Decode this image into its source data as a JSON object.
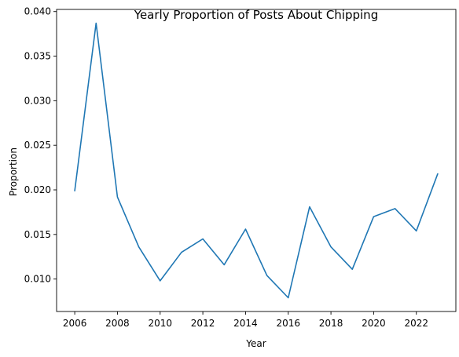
{
  "chart_data": {
    "type": "line",
    "title": "Yearly Proportion of Posts About Chipping",
    "xlabel": "Year",
    "ylabel": "Proportion",
    "x": [
      2006,
      2007,
      2008,
      2009,
      2010,
      2011,
      2012,
      2013,
      2014,
      2015,
      2016,
      2017,
      2018,
      2019,
      2020,
      2021,
      2022,
      2023
    ],
    "series": [
      {
        "values": [
          0.0199,
          0.0387,
          0.0192,
          0.0136,
          0.0098,
          0.013,
          0.0145,
          0.0116,
          0.0156,
          0.0104,
          0.0079,
          0.0181,
          0.0136,
          0.0111,
          0.017,
          0.0179,
          0.0154,
          0.0218
        ],
        "color": "#1f77b4"
      }
    ],
    "xticks": [
      2006,
      2008,
      2010,
      2012,
      2014,
      2016,
      2018,
      2020,
      2022
    ],
    "xtick_labels": [
      "2006",
      "2008",
      "2010",
      "2012",
      "2014",
      "2016",
      "2018",
      "2020",
      "2022"
    ],
    "yticks": [
      0.01,
      0.015,
      0.02,
      0.025,
      0.03,
      0.035,
      0.04
    ],
    "ytick_labels": [
      "0.010",
      "0.015",
      "0.020",
      "0.025",
      "0.030",
      "0.035",
      "0.040"
    ],
    "xlim": [
      2005.15,
      2023.85
    ],
    "ylim": [
      0.00636,
      0.04024
    ],
    "grid": false,
    "legend": "none"
  }
}
